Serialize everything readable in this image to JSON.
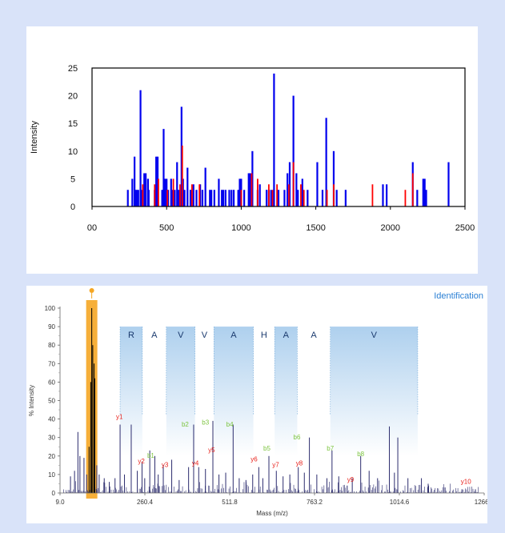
{
  "chart_data": [
    {
      "type": "bar",
      "ylabel": "Intensity",
      "xlim": [
        0,
        2500
      ],
      "ylim": [
        0,
        25
      ],
      "x_ticks": [
        "00",
        "500",
        "1000",
        "1500",
        "2000",
        "2500"
      ],
      "y_ticks": [
        "0",
        "5",
        "10",
        "15",
        "20",
        "25"
      ],
      "colors": {
        "blue": "#0000ee",
        "red": "#ff0000"
      },
      "series": [
        {
          "color": "blue",
          "points": [
            [
              240,
              3
            ],
            [
              270,
              5
            ],
            [
              285,
              9
            ],
            [
              290,
              3
            ],
            [
              300,
              3
            ],
            [
              310,
              3
            ],
            [
              325,
              21
            ],
            [
              330,
              3
            ],
            [
              350,
              6
            ],
            [
              360,
              6
            ],
            [
              375,
              5
            ],
            [
              380,
              3
            ],
            [
              420,
              3
            ],
            [
              430,
              9
            ],
            [
              440,
              9
            ],
            [
              470,
              3
            ],
            [
              480,
              14
            ],
            [
              490,
              5
            ],
            [
              500,
              5
            ],
            [
              510,
              3
            ],
            [
              530,
              5
            ],
            [
              540,
              3
            ],
            [
              555,
              3
            ],
            [
              570,
              8
            ],
            [
              580,
              3
            ],
            [
              590,
              3
            ],
            [
              600,
              18
            ],
            [
              610,
              5
            ],
            [
              620,
              3
            ],
            [
              640,
              7
            ],
            [
              660,
              3
            ],
            [
              680,
              4
            ],
            [
              700,
              3
            ],
            [
              725,
              4
            ],
            [
              740,
              3
            ],
            [
              760,
              7
            ],
            [
              790,
              3
            ],
            [
              800,
              3
            ],
            [
              820,
              3
            ],
            [
              850,
              5
            ],
            [
              870,
              3
            ],
            [
              880,
              3
            ],
            [
              895,
              3
            ],
            [
              920,
              3
            ],
            [
              935,
              3
            ],
            [
              950,
              3
            ],
            [
              980,
              3
            ],
            [
              990,
              5
            ],
            [
              1000,
              5
            ],
            [
              1020,
              3
            ],
            [
              1050,
              6
            ],
            [
              1060,
              6
            ],
            [
              1075,
              10
            ],
            [
              1110,
              3
            ],
            [
              1125,
              4
            ],
            [
              1170,
              3
            ],
            [
              1185,
              3
            ],
            [
              1200,
              3
            ],
            [
              1220,
              24
            ],
            [
              1250,
              3
            ],
            [
              1290,
              3
            ],
            [
              1310,
              6
            ],
            [
              1325,
              8
            ],
            [
              1350,
              20
            ],
            [
              1370,
              6
            ],
            [
              1380,
              3
            ],
            [
              1410,
              5
            ],
            [
              1445,
              3
            ],
            [
              1510,
              8
            ],
            [
              1545,
              3
            ],
            [
              1570,
              16
            ],
            [
              1620,
              10
            ],
            [
              1640,
              3
            ],
            [
              1700,
              3
            ],
            [
              1950,
              4
            ],
            [
              1975,
              4
            ],
            [
              2150,
              8
            ],
            [
              2180,
              3
            ],
            [
              2220,
              5
            ],
            [
              2230,
              5
            ],
            [
              2240,
              3
            ],
            [
              2390,
              8
            ]
          ]
        },
        {
          "color": "red",
          "points": [
            [
              340,
              4
            ],
            [
              420,
              4
            ],
            [
              445,
              5
            ],
            [
              505,
              3
            ],
            [
              545,
              5
            ],
            [
              590,
              4
            ],
            [
              605,
              11
            ],
            [
              670,
              4
            ],
            [
              720,
              4
            ],
            [
              1000,
              3
            ],
            [
              1070,
              6
            ],
            [
              1110,
              5
            ],
            [
              1185,
              4
            ],
            [
              1210,
              3
            ],
            [
              1240,
              4
            ],
            [
              1320,
              4
            ],
            [
              1350,
              8
            ],
            [
              1400,
              4
            ],
            [
              1420,
              3
            ],
            [
              1575,
              3
            ],
            [
              1620,
              4
            ],
            [
              1880,
              4
            ],
            [
              2100,
              3
            ],
            [
              2150,
              6
            ]
          ]
        }
      ]
    },
    {
      "type": "bar",
      "title": "Identification",
      "xlabel": "Mass (m/z)",
      "ylabel": "% Intensity",
      "xlim": [
        9.0,
        1266.0
      ],
      "ylim": [
        0,
        100
      ],
      "x_ticks": [
        "9.0",
        "260.4",
        "511.8",
        "763.2",
        "1014.6",
        "1266.0"
      ],
      "y_ticks": [
        "0",
        "10",
        "20",
        "30",
        "40",
        "50",
        "60",
        "70",
        "80",
        "90",
        "100"
      ],
      "colors": {
        "spectrum": "#2c2c6e",
        "y_ions": "#e8221c",
        "b_ions": "#7cc43e",
        "residue_band": "#aed0ee",
        "residue_text": "#1a3a6e",
        "highlight": "#f5a623"
      },
      "highlight_x": 103,
      "sequence": [
        {
          "residue": "R",
          "start": 187,
          "end": 253
        },
        {
          "residue": "A",
          "start": 253,
          "end": 324
        },
        {
          "residue": "V",
          "start": 324,
          "end": 409
        },
        {
          "residue": "V",
          "start": 409,
          "end": 465
        },
        {
          "residue": "A",
          "start": 465,
          "end": 582
        },
        {
          "residue": "H",
          "start": 582,
          "end": 645
        },
        {
          "residue": "A",
          "start": 645,
          "end": 712
        },
        {
          "residue": "A",
          "start": 712,
          "end": 810
        },
        {
          "residue": "V",
          "start": 810,
          "end": 1069
        }
      ],
      "peaks": [
        [
          40,
          9
        ],
        [
          52,
          12
        ],
        [
          62,
          33
        ],
        [
          68,
          20
        ],
        [
          80,
          19
        ],
        [
          88,
          10
        ],
        [
          95,
          25
        ],
        [
          100,
          60
        ],
        [
          103,
          100
        ],
        [
          106,
          80
        ],
        [
          110,
          70
        ],
        [
          112,
          62
        ],
        [
          118,
          15
        ],
        [
          125,
          10
        ],
        [
          140,
          8
        ],
        [
          155,
          6
        ],
        [
          172,
          8
        ],
        [
          187,
          37
        ],
        [
          200,
          10
        ],
        [
          220,
          37
        ],
        [
          238,
          12
        ],
        [
          252,
          17
        ],
        [
          260,
          8
        ],
        [
          275,
          23
        ],
        [
          290,
          20
        ],
        [
          300,
          10
        ],
        [
          315,
          15
        ],
        [
          340,
          18
        ],
        [
          362,
          7
        ],
        [
          390,
          14
        ],
        [
          405,
          37
        ],
        [
          420,
          14
        ],
        [
          440,
          13
        ],
        [
          462,
          39
        ],
        [
          480,
          10
        ],
        [
          500,
          11
        ],
        [
          522,
          37
        ],
        [
          540,
          8
        ],
        [
          560,
          7
        ],
        [
          580,
          10
        ],
        [
          598,
          14
        ],
        [
          610,
          8
        ],
        [
          628,
          20
        ],
        [
          650,
          12
        ],
        [
          670,
          9
        ],
        [
          690,
          10
        ],
        [
          715,
          14
        ],
        [
          733,
          11
        ],
        [
          748,
          30
        ],
        [
          770,
          10
        ],
        [
          800,
          8
        ],
        [
          815,
          23
        ],
        [
          835,
          9
        ],
        [
          860,
          4
        ],
        [
          875,
          8
        ],
        [
          900,
          20
        ],
        [
          925,
          12
        ],
        [
          950,
          8
        ],
        [
          985,
          36
        ],
        [
          1000,
          11
        ],
        [
          1010,
          30
        ],
        [
          1040,
          8
        ],
        [
          1080,
          8
        ],
        [
          1100,
          5
        ],
        [
          1150,
          3
        ],
        [
          1200,
          2
        ],
        [
          1240,
          2
        ]
      ],
      "ion_labels": [
        {
          "label": "y1",
          "x": 185,
          "y": 40,
          "type": "y"
        },
        {
          "label": "y2",
          "x": 250,
          "y": 16,
          "type": "y"
        },
        {
          "label": "b1",
          "x": 278,
          "y": 19,
          "type": "b"
        },
        {
          "label": "y3",
          "x": 320,
          "y": 14,
          "type": "y"
        },
        {
          "label": "b2",
          "x": 380,
          "y": 36,
          "type": "b"
        },
        {
          "label": "y4",
          "x": 410,
          "y": 15,
          "type": "y"
        },
        {
          "label": "b3",
          "x": 440,
          "y": 37,
          "type": "b"
        },
        {
          "label": "y5",
          "x": 458,
          "y": 22,
          "type": "y"
        },
        {
          "label": "b4",
          "x": 512,
          "y": 36,
          "type": "b"
        },
        {
          "label": "y6",
          "x": 584,
          "y": 17,
          "type": "y"
        },
        {
          "label": "b5",
          "x": 622,
          "y": 23,
          "type": "b"
        },
        {
          "label": "b6",
          "x": 711,
          "y": 29,
          "type": "b"
        },
        {
          "label": "y7",
          "x": 648,
          "y": 14,
          "type": "y"
        },
        {
          "label": "y8",
          "x": 718,
          "y": 15,
          "type": "y"
        },
        {
          "label": "b7",
          "x": 810,
          "y": 23,
          "type": "b"
        },
        {
          "label": "y9",
          "x": 870,
          "y": 6,
          "type": "y"
        },
        {
          "label": "b8",
          "x": 900,
          "y": 20,
          "type": "b"
        },
        {
          "label": "y10",
          "x": 1212,
          "y": 5,
          "type": "y"
        }
      ]
    }
  ]
}
